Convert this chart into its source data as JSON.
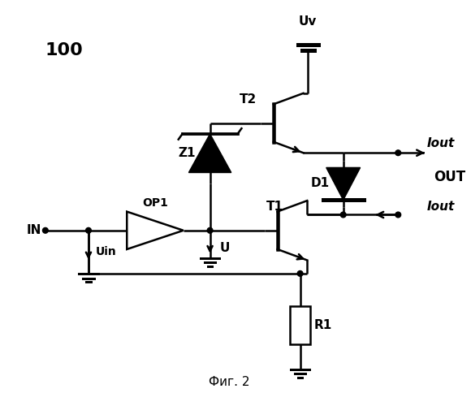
{
  "title": "Фиг. 2",
  "label_100": "100",
  "label_IN": "IN",
  "label_Uin": "Uin",
  "label_OP1": "OP1",
  "label_U": "U",
  "label_Z1": "Z1",
  "label_T1": "T1",
  "label_T2": "T2",
  "label_D1": "D1",
  "label_R1": "R1",
  "label_Uv": "Uv",
  "label_Iout_top": "Iout",
  "label_Iout_bot": "Iout",
  "label_OUT": "OUT",
  "bg_color": "#ffffff",
  "line_color": "#000000",
  "lw": 1.8
}
